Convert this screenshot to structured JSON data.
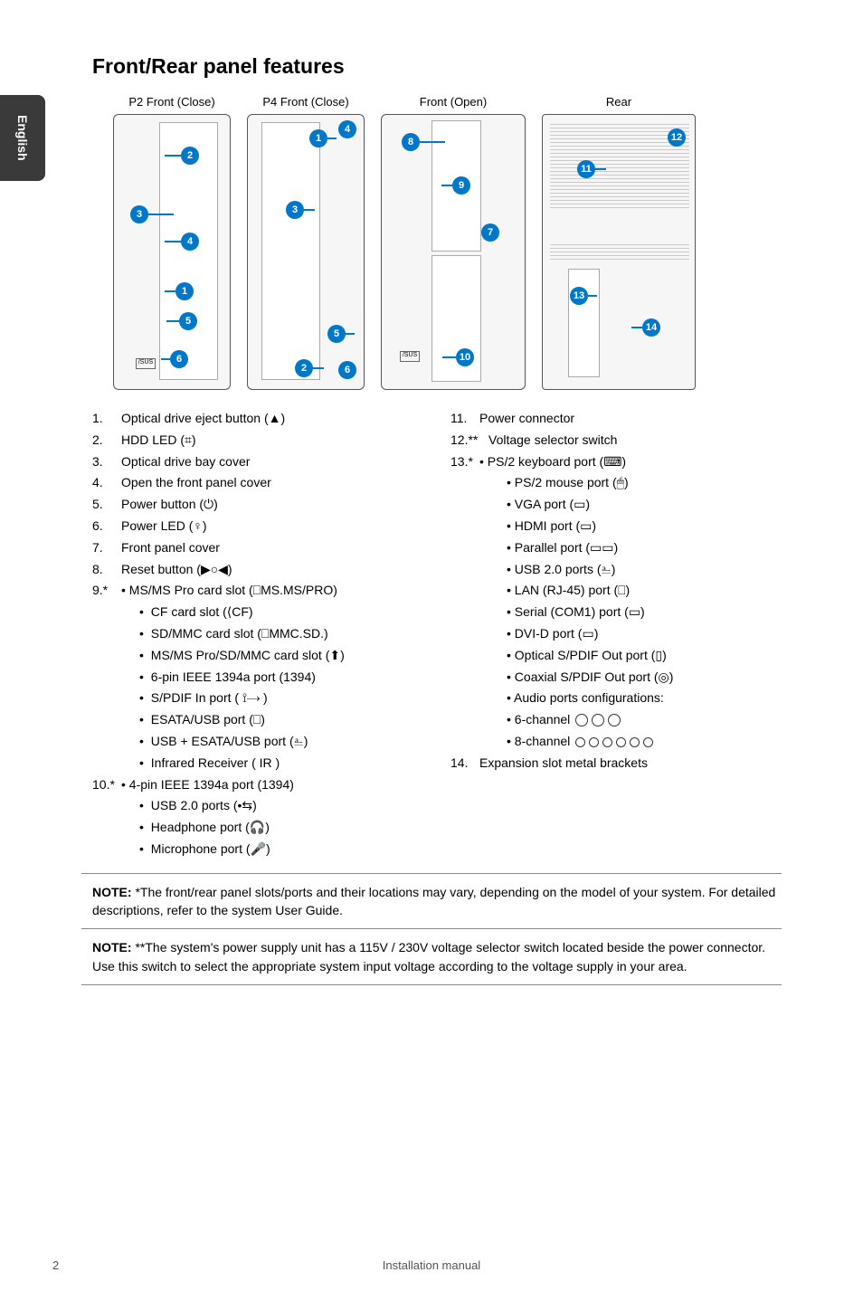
{
  "page": {
    "language_tab": "English",
    "title": "Front/Rear panel features",
    "page_number": "2",
    "footer_center": "Installation manual"
  },
  "diagram_labels": {
    "p2": "P2 Front (Close)",
    "p4": "P4 Front (Close)",
    "open": "Front (Open)",
    "rear": "Rear"
  },
  "features_left": [
    {
      "num": "1.",
      "text": "Optical drive eject button (▲)"
    },
    {
      "num": "2.",
      "text": "HDD LED (⌗)"
    },
    {
      "num": "3.",
      "text": "Optical drive bay cover"
    },
    {
      "num": "4.",
      "text": "Open the front panel cover"
    },
    {
      "num": "5.",
      "text": "Power button (⏻)"
    },
    {
      "num": "6.",
      "text": "Power LED (♀)"
    },
    {
      "num": "7.",
      "text": "Front panel cover"
    },
    {
      "num": "8.",
      "text": "Reset button (▶○◀)"
    },
    {
      "num": "9.*",
      "text": "• MS/MS Pro card slot (⎕MS.MS/PRO)"
    }
  ],
  "features_left_sub9": [
    "CF card slot (⟨CF)",
    "SD/MMC card slot (⎕MMC.SD.)",
    "MS/MS Pro/SD/MMC card slot (⬆)",
    "6-pin IEEE 1394a port (1394)",
    "S/PDIF In port ( ⟟⟶ )",
    "ESATA/USB port (⎕)",
    "USB + ESATA/USB port (⎁)",
    "Infrared Receiver ( IR )"
  ],
  "features_left_10": {
    "num": "10.*",
    "text": "• 4-pin IEEE 1394a port (1394)"
  },
  "features_left_sub10": [
    "USB 2.0 ports (•⇆)",
    "Headphone port (🎧)",
    "Microphone port (🎤)"
  ],
  "features_right": [
    {
      "num": "11.",
      "text": "Power connector"
    },
    {
      "num": "12.**",
      "text": "Voltage selector switch"
    },
    {
      "num": "13.*",
      "text": "• PS/2 keyboard port (⌨)"
    }
  ],
  "features_right_sub13": [
    "PS/2 mouse port (🖱)",
    "VGA port (▭)",
    "HDMI port (▭)",
    "Parallel port (▭▭)",
    "USB 2.0 ports (⎁)",
    "LAN (RJ-45) port (⎕)",
    "Serial (COM1) port (▭)",
    "DVI-D port (▭)",
    "Optical S/PDIF Out port (▯)",
    "Coaxial S/PDIF Out port (◎)",
    "Audio ports configurations:"
  ],
  "channels": {
    "c6": "6-channel",
    "c8": "8-channel"
  },
  "features_right_14": {
    "num": "14.",
    "text": "Expansion slot metal brackets"
  },
  "note1": "*The front/rear panel slots/ports and their locations may vary, depending on the model of your system. For detailed descriptions, refer to the system User Guide.",
  "note2": "**The system's power supply unit has a 115V / 230V voltage selector switch located beside the power connector. Use this switch to select the appropriate system input voltage according to the voltage supply in your area.",
  "note_label": "NOTE:",
  "callouts": {
    "p2": [
      "1",
      "2",
      "3",
      "4",
      "5",
      "6"
    ],
    "p4": [
      "1",
      "2",
      "3",
      "4",
      "5",
      "6"
    ],
    "open": [
      "7",
      "8",
      "9",
      "10"
    ],
    "rear": [
      "11",
      "12",
      "13",
      "14"
    ]
  },
  "colors": {
    "callout_bg": "#0077c8",
    "side_tab_bg": "#3a3a3a",
    "text": "#000000",
    "rule": "#888888"
  }
}
